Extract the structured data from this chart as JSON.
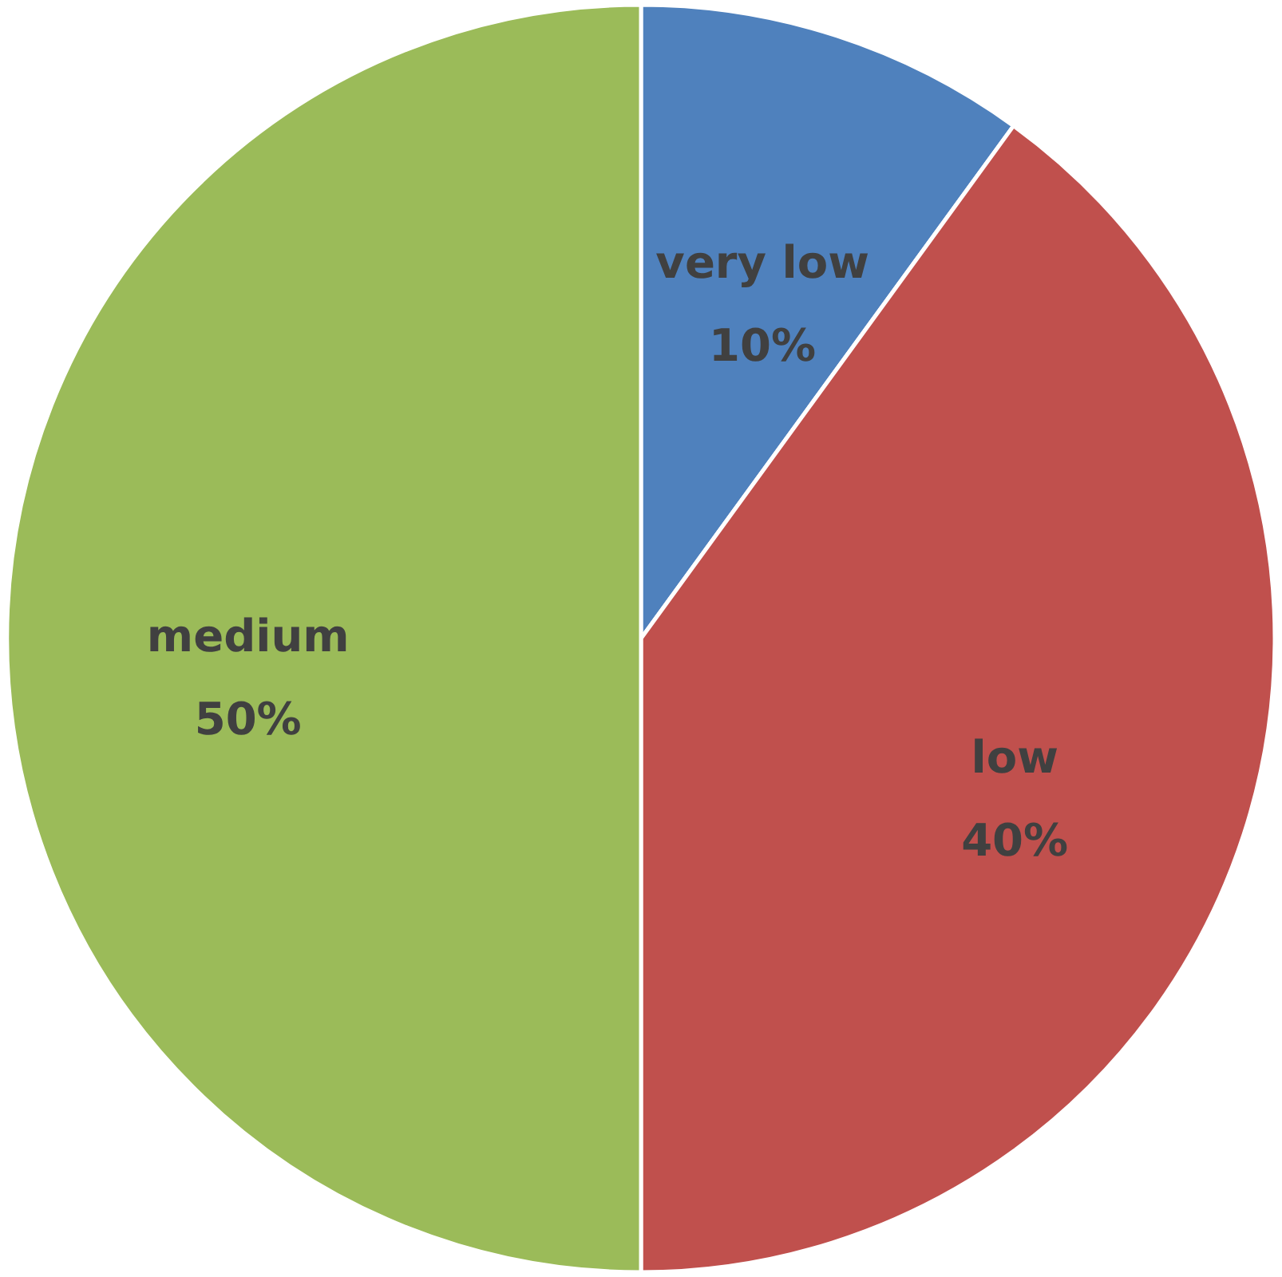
{
  "chart_data": {
    "type": "pie",
    "categories": [
      "very low",
      "low",
      "medium"
    ],
    "values": [
      10,
      40,
      50
    ],
    "value_labels": [
      "10%",
      "40%",
      "50%"
    ],
    "colors": [
      "#4f81bd",
      "#c0504d",
      "#9bbb59"
    ]
  }
}
